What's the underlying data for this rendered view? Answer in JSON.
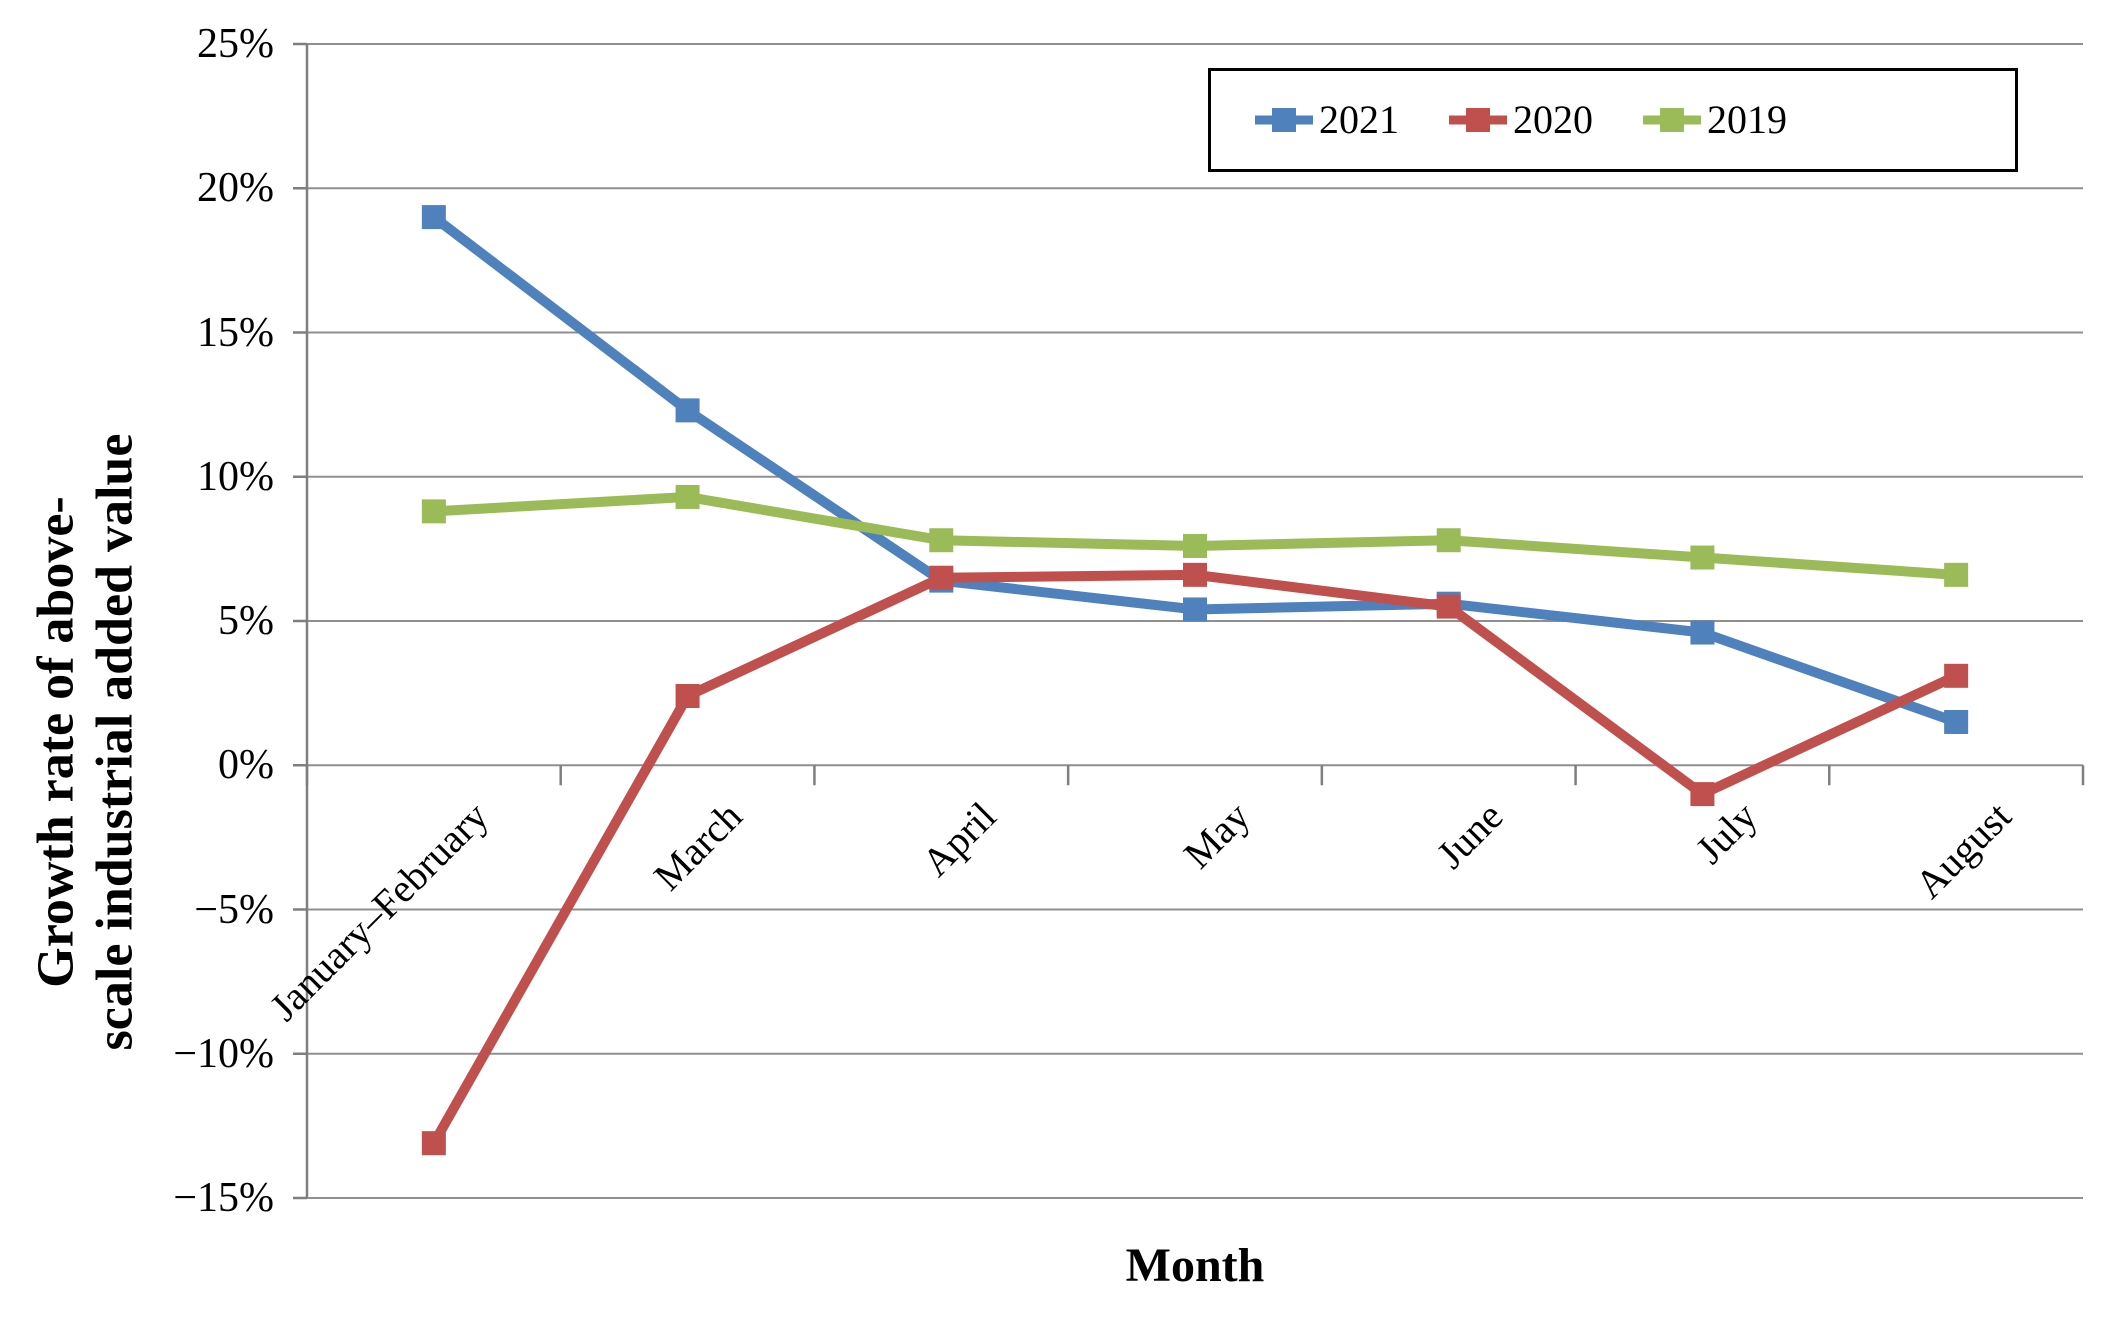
{
  "chart_data": {
    "type": "line",
    "categories": [
      "January–February",
      "March",
      "April",
      "May",
      "June",
      "July",
      "August"
    ],
    "series": [
      {
        "name": "2021",
        "color": "#4F81BD",
        "values": [
          19.0,
          12.3,
          6.4,
          5.4,
          5.6,
          4.6,
          1.5
        ]
      },
      {
        "name": "2020",
        "color": "#C0504D",
        "values": [
          -13.1,
          2.4,
          6.5,
          6.6,
          5.5,
          -1.0,
          3.1
        ]
      },
      {
        "name": "2019",
        "color": "#9BBB59",
        "values": [
          8.8,
          9.3,
          7.8,
          7.6,
          7.8,
          7.2,
          6.6
        ]
      }
    ],
    "title": "",
    "xlabel": "Month",
    "ylabel_line1": "Growth rate of above-",
    "ylabel_line2": "scale industrial added value",
    "ylim": [
      -15,
      25
    ],
    "ytick_step": 5,
    "ytick_labels": [
      "25%",
      "20%",
      "15%",
      "10%",
      "5%",
      "0%",
      "−5%",
      "−10%",
      "−15%"
    ],
    "grid": true,
    "legend_position": "top-right",
    "marker": "square",
    "grid_color": "#8F8F8F",
    "axis_color": "#7F7F7F",
    "text_color": "#000000"
  }
}
